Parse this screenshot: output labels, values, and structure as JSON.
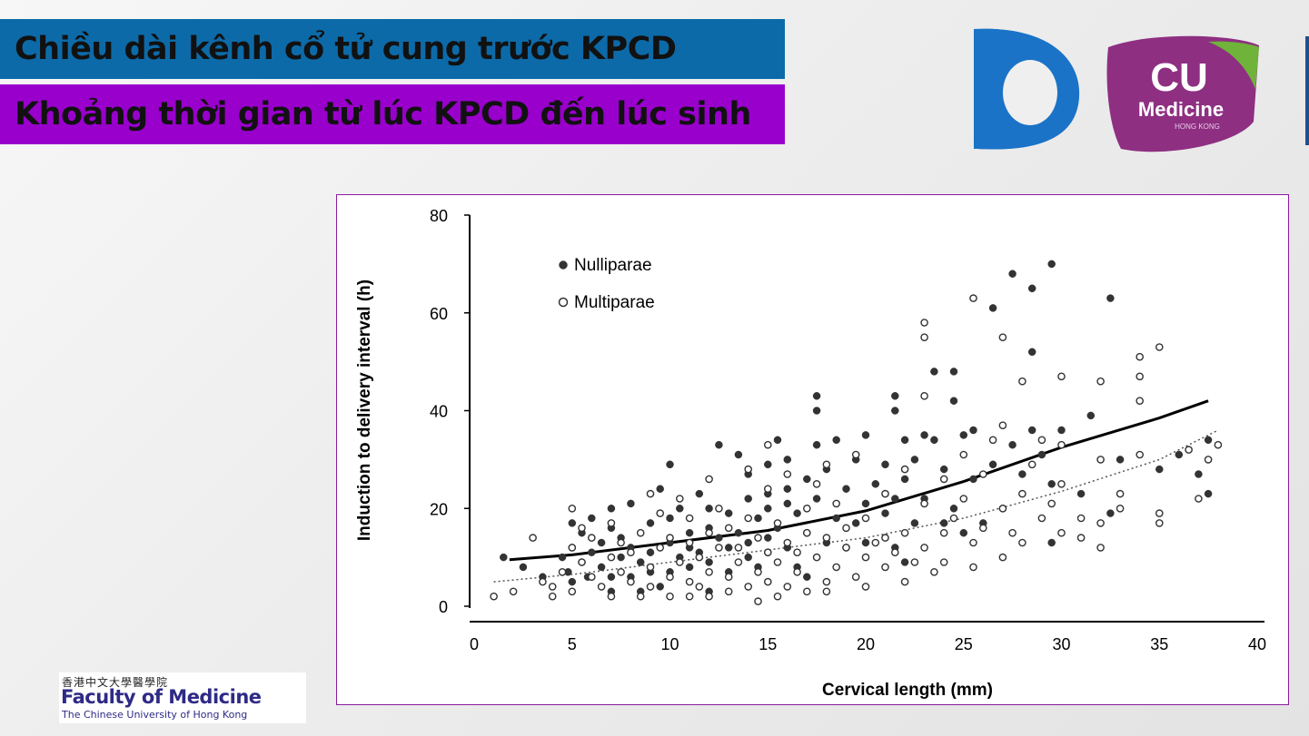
{
  "slide": {
    "title_line1": "Chiều dài kênh cổ tử cung trước KPCD",
    "title_line2": "Khoảng thời gian từ lúc KPCD đến lúc sinh",
    "title1_color": "#0d6aa8",
    "title2_color": "#9900cc"
  },
  "logos": {
    "cu_line1": "CU",
    "cu_line2": "Medicine",
    "cu_line3": "HONG KONG",
    "faculty_chinese": "香港中文大學醫學院",
    "faculty_name": "Faculty of Medicine",
    "faculty_sub": "The Chinese University of Hong Kong"
  },
  "chart_data": {
    "type": "scatter",
    "xlabel": "Cervical length (mm)",
    "ylabel": "Induction to delivery interval (h)",
    "xlim": [
      0,
      40
    ],
    "ylim": [
      0,
      80
    ],
    "xticks": [
      0,
      5,
      10,
      15,
      20,
      25,
      30,
      35,
      40
    ],
    "yticks": [
      0,
      20,
      40,
      60,
      80
    ],
    "grid": false,
    "legend_position": "top-left",
    "series": [
      {
        "name": "Nulliparae",
        "marker": "filled-circle",
        "color": "#333333",
        "points": [
          [
            1.5,
            10
          ],
          [
            2.5,
            8
          ],
          [
            3.5,
            6
          ],
          [
            4.5,
            10
          ],
          [
            4.8,
            7
          ],
          [
            5,
            5
          ],
          [
            5,
            12
          ],
          [
            5,
            17
          ],
          [
            5.5,
            9
          ],
          [
            5.5,
            15
          ],
          [
            5.8,
            6
          ],
          [
            6,
            11
          ],
          [
            6,
            18
          ],
          [
            6.5,
            8
          ],
          [
            6.5,
            13
          ],
          [
            7,
            20
          ],
          [
            7,
            6
          ],
          [
            7,
            16
          ],
          [
            7,
            3
          ],
          [
            7.5,
            10
          ],
          [
            7.5,
            14
          ],
          [
            8,
            12
          ],
          [
            8,
            21
          ],
          [
            8,
            6
          ],
          [
            8.5,
            9
          ],
          [
            8.5,
            3
          ],
          [
            9,
            7
          ],
          [
            9,
            11
          ],
          [
            9,
            17
          ],
          [
            9.5,
            24
          ],
          [
            9.5,
            4
          ],
          [
            10,
            29
          ],
          [
            10,
            13
          ],
          [
            10,
            18
          ],
          [
            10,
            7
          ],
          [
            10.5,
            20
          ],
          [
            10.5,
            10
          ],
          [
            11,
            12
          ],
          [
            11,
            15
          ],
          [
            11,
            8
          ],
          [
            11.5,
            23
          ],
          [
            11.5,
            11
          ],
          [
            12,
            16
          ],
          [
            12,
            9
          ],
          [
            12,
            20
          ],
          [
            12,
            3
          ],
          [
            12.5,
            14
          ],
          [
            12.5,
            33
          ],
          [
            13,
            12
          ],
          [
            13,
            19
          ],
          [
            13,
            7
          ],
          [
            13.5,
            15
          ],
          [
            13.5,
            31
          ],
          [
            14,
            13
          ],
          [
            14,
            22
          ],
          [
            14,
            10
          ],
          [
            14,
            27
          ],
          [
            14.5,
            18
          ],
          [
            14.5,
            8
          ],
          [
            15,
            20
          ],
          [
            15,
            14
          ],
          [
            15,
            23
          ],
          [
            15,
            29
          ],
          [
            15,
            11
          ],
          [
            15.5,
            34
          ],
          [
            15.5,
            16
          ],
          [
            16,
            21
          ],
          [
            16,
            12
          ],
          [
            16,
            24
          ],
          [
            16,
            30
          ],
          [
            16.5,
            8
          ],
          [
            16.5,
            19
          ],
          [
            17,
            15
          ],
          [
            17,
            26
          ],
          [
            17,
            6
          ],
          [
            17.5,
            43
          ],
          [
            17.5,
            40
          ],
          [
            17.5,
            22
          ],
          [
            17.5,
            33
          ],
          [
            18,
            13
          ],
          [
            18,
            28
          ],
          [
            18.5,
            18
          ],
          [
            18.5,
            34
          ],
          [
            19,
            24
          ],
          [
            19,
            12
          ],
          [
            19.5,
            30
          ],
          [
            19.5,
            17
          ],
          [
            20,
            35
          ],
          [
            20,
            21
          ],
          [
            20,
            13
          ],
          [
            20.5,
            25
          ],
          [
            21,
            19
          ],
          [
            21,
            29
          ],
          [
            21.5,
            43
          ],
          [
            21.5,
            40
          ],
          [
            21.5,
            22
          ],
          [
            21.5,
            12
          ],
          [
            22,
            34
          ],
          [
            22,
            26
          ],
          [
            22,
            9
          ],
          [
            22.5,
            30
          ],
          [
            22.5,
            17
          ],
          [
            23,
            35
          ],
          [
            23,
            22
          ],
          [
            23.5,
            48
          ],
          [
            23.5,
            34
          ],
          [
            24,
            28
          ],
          [
            24,
            17
          ],
          [
            24.5,
            48
          ],
          [
            24.5,
            42
          ],
          [
            24.5,
            20
          ],
          [
            25,
            35
          ],
          [
            25,
            15
          ],
          [
            25.5,
            36
          ],
          [
            25.5,
            26
          ],
          [
            26,
            17
          ],
          [
            26.5,
            61
          ],
          [
            26.5,
            29
          ],
          [
            27,
            20
          ],
          [
            27.5,
            68
          ],
          [
            27.5,
            33
          ],
          [
            28,
            27
          ],
          [
            28.5,
            65
          ],
          [
            28.5,
            52
          ],
          [
            28.5,
            36
          ],
          [
            29,
            31
          ],
          [
            29.5,
            70
          ],
          [
            29.5,
            13
          ],
          [
            29.5,
            25
          ],
          [
            30,
            36
          ],
          [
            31,
            23
          ],
          [
            31.5,
            39
          ],
          [
            32.5,
            63
          ],
          [
            32.5,
            19
          ],
          [
            33,
            30
          ],
          [
            35,
            28
          ],
          [
            36,
            31
          ],
          [
            37,
            27
          ],
          [
            37.5,
            23
          ],
          [
            37.5,
            34
          ]
        ]
      },
      {
        "name": "Multiparae",
        "marker": "open-circle",
        "color": "#333333",
        "points": [
          [
            1,
            2
          ],
          [
            2,
            3
          ],
          [
            3,
            14
          ],
          [
            3.5,
            5
          ],
          [
            4,
            4
          ],
          [
            4,
            2
          ],
          [
            4.5,
            7
          ],
          [
            5,
            20
          ],
          [
            5,
            12
          ],
          [
            5,
            3
          ],
          [
            5.5,
            16
          ],
          [
            5.5,
            9
          ],
          [
            6,
            6
          ],
          [
            6,
            14
          ],
          [
            6.5,
            4
          ],
          [
            7,
            10
          ],
          [
            7,
            17
          ],
          [
            7,
            2
          ],
          [
            7.5,
            7
          ],
          [
            7.5,
            13
          ],
          [
            8,
            5
          ],
          [
            8,
            11
          ],
          [
            8.5,
            15
          ],
          [
            8.5,
            2
          ],
          [
            9,
            8
          ],
          [
            9,
            23
          ],
          [
            9,
            4
          ],
          [
            9.5,
            12
          ],
          [
            9.5,
            19
          ],
          [
            10,
            6
          ],
          [
            10,
            14
          ],
          [
            10,
            2
          ],
          [
            10.5,
            9
          ],
          [
            10.5,
            22
          ],
          [
            11,
            5
          ],
          [
            11,
            13
          ],
          [
            11,
            18
          ],
          [
            11,
            2
          ],
          [
            11.5,
            10
          ],
          [
            11.5,
            4
          ],
          [
            12,
            7
          ],
          [
            12,
            15
          ],
          [
            12,
            26
          ],
          [
            12,
            2
          ],
          [
            12.5,
            12
          ],
          [
            12.5,
            20
          ],
          [
            13,
            6
          ],
          [
            13,
            16
          ],
          [
            13,
            3
          ],
          [
            13.5,
            9
          ],
          [
            13.5,
            12
          ],
          [
            14,
            4
          ],
          [
            14,
            18
          ],
          [
            14,
            28
          ],
          [
            14.5,
            7
          ],
          [
            14.5,
            14
          ],
          [
            14.5,
            1
          ],
          [
            15,
            11
          ],
          [
            15,
            24
          ],
          [
            15,
            5
          ],
          [
            15,
            33
          ],
          [
            15.5,
            9
          ],
          [
            15.5,
            17
          ],
          [
            15.5,
            2
          ],
          [
            16,
            13
          ],
          [
            16,
            4
          ],
          [
            16,
            27
          ],
          [
            16.5,
            7
          ],
          [
            16.5,
            11
          ],
          [
            17,
            15
          ],
          [
            17,
            3
          ],
          [
            17,
            20
          ],
          [
            17.5,
            10
          ],
          [
            17.5,
            25
          ],
          [
            18,
            5
          ],
          [
            18,
            14
          ],
          [
            18,
            29
          ],
          [
            18,
            3
          ],
          [
            18.5,
            8
          ],
          [
            18.5,
            21
          ],
          [
            19,
            12
          ],
          [
            19,
            16
          ],
          [
            19.5,
            6
          ],
          [
            19.5,
            31
          ],
          [
            20,
            10
          ],
          [
            20,
            18
          ],
          [
            20,
            4
          ],
          [
            20.5,
            13
          ],
          [
            21,
            8
          ],
          [
            21,
            23
          ],
          [
            21,
            14
          ],
          [
            21.5,
            11
          ],
          [
            22,
            15
          ],
          [
            22,
            5
          ],
          [
            22,
            28
          ],
          [
            22.5,
            9
          ],
          [
            23,
            12
          ],
          [
            23,
            58
          ],
          [
            23,
            55
          ],
          [
            23,
            43
          ],
          [
            23,
            21
          ],
          [
            23.5,
            7
          ],
          [
            24,
            26
          ],
          [
            24,
            15
          ],
          [
            24,
            9
          ],
          [
            24.5,
            18
          ],
          [
            25,
            22
          ],
          [
            25,
            31
          ],
          [
            25.5,
            13
          ],
          [
            25.5,
            63
          ],
          [
            25.5,
            8
          ],
          [
            26,
            16
          ],
          [
            26,
            27
          ],
          [
            26.5,
            34
          ],
          [
            27,
            55
          ],
          [
            27,
            10
          ],
          [
            27,
            37
          ],
          [
            27,
            20
          ],
          [
            27.5,
            15
          ],
          [
            28,
            46
          ],
          [
            28,
            13
          ],
          [
            28,
            23
          ],
          [
            28.5,
            29
          ],
          [
            29,
            34
          ],
          [
            29,
            18
          ],
          [
            29.5,
            21
          ],
          [
            30,
            47
          ],
          [
            30,
            33
          ],
          [
            30,
            25
          ],
          [
            30,
            15
          ],
          [
            31,
            18
          ],
          [
            31,
            14
          ],
          [
            32,
            46
          ],
          [
            32,
            17
          ],
          [
            32,
            12
          ],
          [
            32,
            30
          ],
          [
            33,
            20
          ],
          [
            33,
            23
          ],
          [
            34,
            51
          ],
          [
            34,
            47
          ],
          [
            34,
            42
          ],
          [
            34,
            31
          ],
          [
            35,
            53
          ],
          [
            35,
            19
          ],
          [
            35,
            17
          ],
          [
            36.5,
            32
          ],
          [
            37,
            22
          ],
          [
            37.5,
            30
          ],
          [
            38,
            33
          ]
        ]
      },
      {
        "name": "",
        "marker": "solid-line",
        "color": "#000000",
        "points": [
          [
            1.8,
            9.5
          ],
          [
            5,
            10.5
          ],
          [
            10,
            13
          ],
          [
            15,
            15.5
          ],
          [
            20,
            19.5
          ],
          [
            25,
            25.5
          ],
          [
            30,
            32.5
          ],
          [
            35,
            38.5
          ],
          [
            37.5,
            42
          ]
        ]
      },
      {
        "name": "",
        "marker": "dotted-line",
        "color": "#555555",
        "points": [
          [
            1,
            5
          ],
          [
            5,
            6.5
          ],
          [
            10,
            9
          ],
          [
            15,
            11.5
          ],
          [
            20,
            14
          ],
          [
            25,
            18
          ],
          [
            30,
            23.5
          ],
          [
            35,
            30
          ],
          [
            38,
            36
          ]
        ]
      }
    ]
  }
}
